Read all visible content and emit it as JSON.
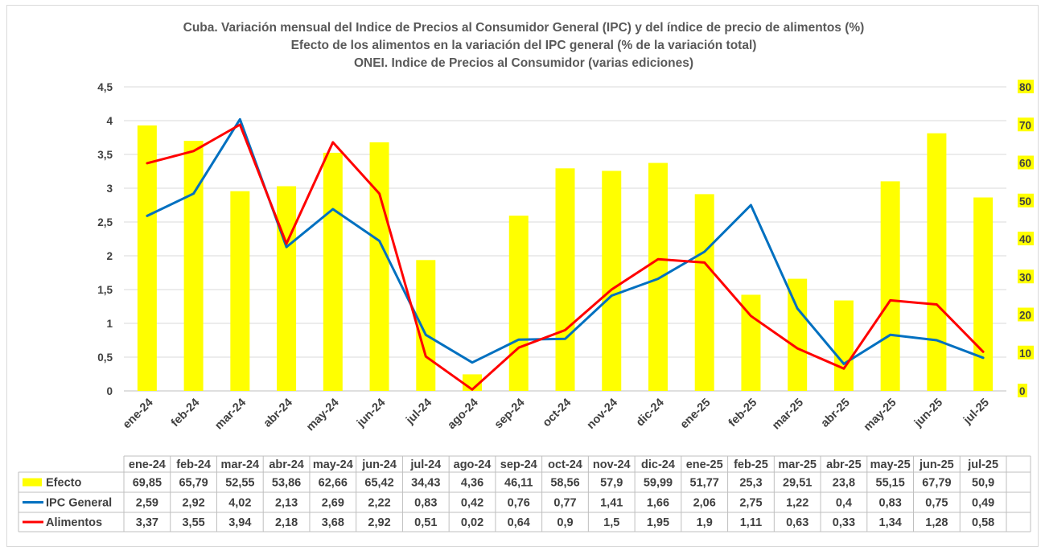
{
  "chart_data": {
    "type": "bar+line",
    "title_lines": [
      "Cuba. Variación mensual del Indice de Precios al Consumidor General  (IPC) y del índice de precio de alimentos (%)",
      "Efecto de los alimentos en la variación del IPC general (%  de la variación total)",
      "ONEI. Indice de Precios al Consumidor (varias ediciones)"
    ],
    "categories": [
      "ene-24",
      "feb-24",
      "mar-24",
      "abr-24",
      "may-24",
      "jun-24",
      "jul-24",
      "ago-24",
      "sep-24",
      "oct-24",
      "nov-24",
      "dic-24",
      "ene-25",
      "feb-25",
      "mar-25",
      "abr-25",
      "may-25",
      "jun-25",
      "jul-25"
    ],
    "left_axis": {
      "min": 0,
      "max": 4.5,
      "ticks": [
        "0",
        "0,5",
        "1",
        "1,5",
        "2",
        "2,5",
        "3",
        "3,5",
        "4",
        "4,5"
      ]
    },
    "right_axis": {
      "min": 0,
      "max": 80,
      "ticks": [
        "0",
        "10",
        "20",
        "30",
        "40",
        "50",
        "60",
        "70",
        "80"
      ]
    },
    "series": [
      {
        "name": "Efecto",
        "type": "bar",
        "axis": "right",
        "color": "#ffff00",
        "values": [
          69.85,
          65.79,
          52.55,
          53.86,
          62.66,
          65.42,
          34.43,
          4.36,
          46.11,
          58.56,
          57.9,
          59.99,
          51.77,
          25.3,
          29.51,
          23.8,
          55.15,
          67.79,
          50.9
        ],
        "labels": [
          "69,85",
          "65,79",
          "52,55",
          "53,86",
          "62,66",
          "65,42",
          "34,43",
          "4,36",
          "46,11",
          "58,56",
          "57,9",
          "59,99",
          "51,77",
          "25,3",
          "29,51",
          "23,8",
          "55,15",
          "67,79",
          "50,9"
        ]
      },
      {
        "name": "IPC General",
        "type": "line",
        "axis": "left",
        "color": "#0070c0",
        "values": [
          2.59,
          2.92,
          4.02,
          2.13,
          2.69,
          2.22,
          0.83,
          0.42,
          0.76,
          0.77,
          1.41,
          1.66,
          2.06,
          2.75,
          1.22,
          0.4,
          0.83,
          0.75,
          0.49
        ],
        "labels": [
          "2,59",
          "2,92",
          "4,02",
          "2,13",
          "2,69",
          "2,22",
          "0,83",
          "0,42",
          "0,76",
          "0,77",
          "1,41",
          "1,66",
          "2,06",
          "2,75",
          "1,22",
          "0,4",
          "0,83",
          "0,75",
          "0,49"
        ]
      },
      {
        "name": "Alimentos",
        "type": "line",
        "axis": "left",
        "color": "#ff0000",
        "values": [
          3.37,
          3.55,
          3.94,
          2.18,
          3.68,
          2.92,
          0.51,
          0.02,
          0.64,
          0.9,
          1.5,
          1.95,
          1.9,
          1.11,
          0.63,
          0.33,
          1.34,
          1.28,
          0.58
        ],
        "labels": [
          "3,37",
          "3,55",
          "3,94",
          "2,18",
          "3,68",
          "2,92",
          "0,51",
          "0,02",
          "0,64",
          "0,9",
          "1,5",
          "1,95",
          "1,9",
          "1,11",
          "0,63",
          "0,33",
          "1,34",
          "1,28",
          "0,58"
        ]
      }
    ],
    "gridlines": true,
    "data_table": true
  }
}
